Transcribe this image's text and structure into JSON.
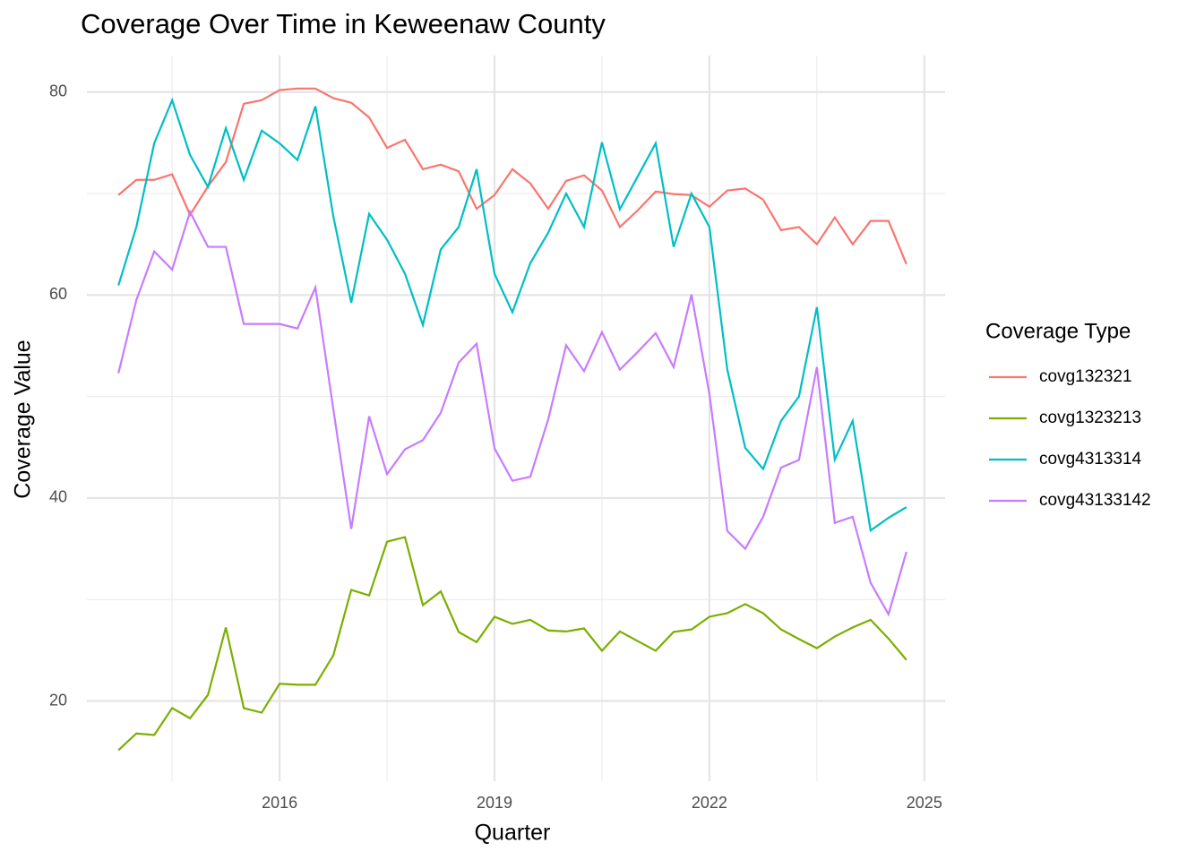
{
  "chart_data": {
    "type": "line",
    "title": "Coverage Over Time in Keweenaw County",
    "xlabel": "Quarter",
    "ylabel": "Coverage Value",
    "legend_title": "Coverage Type",
    "legend": "right",
    "grid": true,
    "x": [
      2013.75,
      2014,
      2014.25,
      2014.5,
      2014.75,
      2015,
      2015.25,
      2015.5,
      2015.75,
      2016,
      2016.25,
      2016.5,
      2016.75,
      2017,
      2017.25,
      2017.5,
      2017.75,
      2018,
      2018.25,
      2018.5,
      2018.75,
      2019,
      2019.25,
      2019.5,
      2019.75,
      2020,
      2020.25,
      2020.5,
      2020.75,
      2021,
      2021.25,
      2021.5,
      2021.75,
      2022,
      2022.25,
      2022.5,
      2022.75,
      2023,
      2023.25,
      2023.5,
      2023.75,
      2024,
      2024.25,
      2024.5,
      2024.75
    ],
    "series": [
      {
        "name": "covg132321",
        "color": "#F8766D",
        "values": [
          69.85,
          71.35,
          71.35,
          71.9,
          67.9,
          70.7,
          73.1,
          78.85,
          79.2,
          80.2,
          80.35,
          80.35,
          79.4,
          78.95,
          77.5,
          74.5,
          75.3,
          72.4,
          72.85,
          72.2,
          68.5,
          69.85,
          72.4,
          71.0,
          68.5,
          71.25,
          71.8,
          70.3,
          66.7,
          68.35,
          70.2,
          69.95,
          69.85,
          68.7,
          70.3,
          70.5,
          69.4,
          66.4,
          66.7,
          65.0,
          67.65,
          65.0,
          67.3,
          67.3,
          63.05
        ]
      },
      {
        "name": "covg1323213",
        "color": "#7CAE00",
        "values": [
          15.15,
          16.8,
          16.65,
          19.3,
          18.3,
          20.6,
          27.25,
          19.3,
          18.85,
          21.7,
          21.6,
          21.6,
          24.5,
          30.95,
          30.4,
          35.7,
          36.15,
          29.45,
          30.8,
          26.8,
          25.8,
          28.3,
          27.6,
          28.0,
          26.95,
          26.85,
          27.15,
          24.95,
          26.85,
          25.9,
          24.95,
          26.8,
          27.05,
          28.3,
          28.65,
          29.55,
          28.65,
          27.05,
          26.1,
          25.2,
          26.35,
          27.25,
          28.0,
          26.15,
          24.05
        ]
      },
      {
        "name": "covg4313314",
        "color": "#00BFC4",
        "values": [
          60.95,
          66.7,
          74.95,
          79.2,
          73.8,
          70.65,
          76.45,
          71.35,
          76.2,
          74.95,
          73.3,
          78.6,
          67.75,
          59.25,
          68.0,
          65.45,
          62.1,
          57.05,
          64.5,
          66.7,
          72.4,
          62.1,
          58.3,
          63.15,
          66.15,
          70.0,
          66.7,
          75.05,
          68.45,
          71.7,
          74.95,
          64.75,
          70.0,
          66.7,
          52.65,
          44.95,
          42.85,
          47.6,
          50.0,
          58.8,
          43.8,
          47.6,
          36.8,
          38.05,
          39.1
        ]
      },
      {
        "name": "covg43133142",
        "color": "#C77CFF",
        "values": [
          52.3,
          59.5,
          64.3,
          62.5,
          68.2,
          64.75,
          64.75,
          57.15,
          57.15,
          57.15,
          56.7,
          60.75,
          48.75,
          36.95,
          48.05,
          42.35,
          44.8,
          45.7,
          48.4,
          53.35,
          55.2,
          44.9,
          41.7,
          42.1,
          47.75,
          55.05,
          52.5,
          56.35,
          52.65,
          54.4,
          56.25,
          52.9,
          60.05,
          50.25,
          36.75,
          35.0,
          38.15,
          43.0,
          43.75,
          52.9,
          37.55,
          38.15,
          31.65,
          28.55,
          34.7
        ]
      }
    ],
    "xlim": [
      2013.31,
      2025.29
    ],
    "xticks": [
      2016,
      2019,
      2022,
      2025
    ],
    "x_minor_ticks": [
      2014.5,
      2017.5,
      2020.5,
      2023.5
    ],
    "ylim": [
      12.1,
      83.6
    ],
    "yticks": [
      20,
      40,
      60,
      80
    ],
    "y_minor_ticks": [
      30,
      50,
      70
    ]
  }
}
